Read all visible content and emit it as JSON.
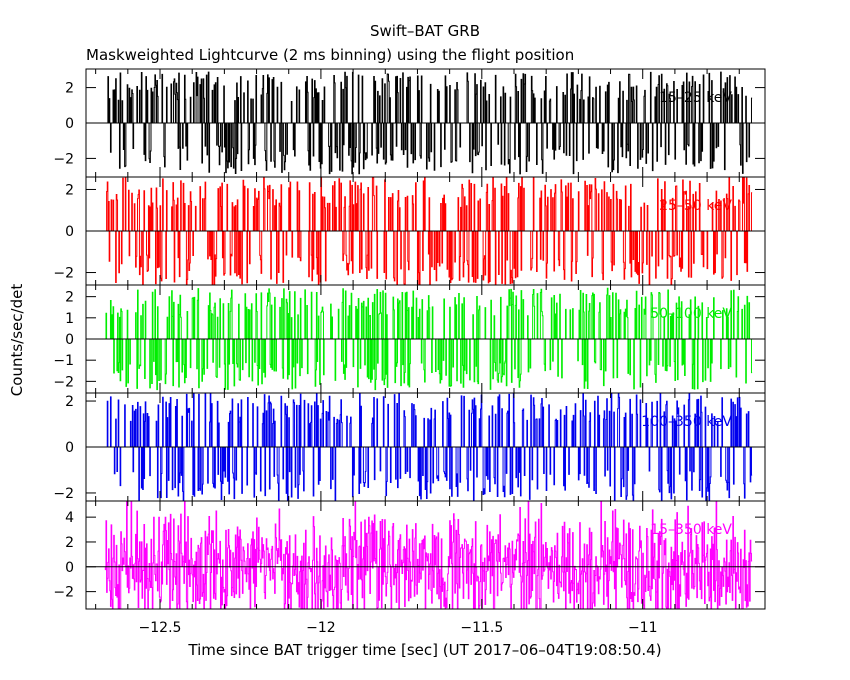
{
  "chart_data": {
    "type": "line",
    "title": "Swift–BAT GRB",
    "subtitle": "Maskweighted Lightcurve (2 ms binning) using the flight position",
    "xlabel": "Time since BAT trigger time [sec] (UT 2017–06–04T19:08:50.4)",
    "ylabel": "Counts/sec/det",
    "xlim": [
      -12.73,
      -10.62
    ],
    "x_ticks": [
      -12.5,
      -12,
      -11.5,
      -11
    ],
    "x_tick_labels": [
      "−12.5",
      "−12",
      "−11.5",
      "−11"
    ],
    "data_range_x": [
      -12.67,
      -10.66
    ],
    "bin_width": 0.002,
    "grid": false,
    "panels": [
      {
        "name": "15–25 keV",
        "color": "#000000",
        "ylim": [
          -3.05,
          3.05
        ],
        "y_ticks": [
          -2,
          0,
          2
        ],
        "y_tick_labels": [
          "−2",
          "0",
          "2"
        ],
        "amplitude": 2.4,
        "seed": 11
      },
      {
        "name": "25–50 keV",
        "color": "#ff0000",
        "ylim": [
          -2.6,
          2.6
        ],
        "y_ticks": [
          -2,
          0,
          2
        ],
        "y_tick_labels": [
          "−2",
          "0",
          "2"
        ],
        "amplitude": 2.2,
        "seed": 23
      },
      {
        "name": "50–100 keV",
        "color": "#00ee00",
        "ylim": [
          -2.55,
          2.55
        ],
        "y_ticks": [
          -2,
          -1,
          0,
          1,
          2
        ],
        "y_tick_labels": [
          "−2",
          "−1",
          "0",
          "1",
          "2"
        ],
        "amplitude": 2.0,
        "seed": 37
      },
      {
        "name": "100–350 keV",
        "color": "#0000ee",
        "ylim": [
          -2.35,
          2.35
        ],
        "y_ticks": [
          -2,
          0,
          2
        ],
        "y_tick_labels": [
          "−2",
          "0",
          "2"
        ],
        "amplitude": 2.0,
        "seed": 53
      },
      {
        "name": "15–350 keV",
        "color": "#ff00ff",
        "ylim": [
          -3.4,
          5.3
        ],
        "y_ticks": [
          -2,
          0,
          2,
          4
        ],
        "y_tick_labels": [
          "−2",
          "0",
          "2",
          "4"
        ],
        "amplitude": 3.0,
        "seed": 71
      }
    ]
  }
}
